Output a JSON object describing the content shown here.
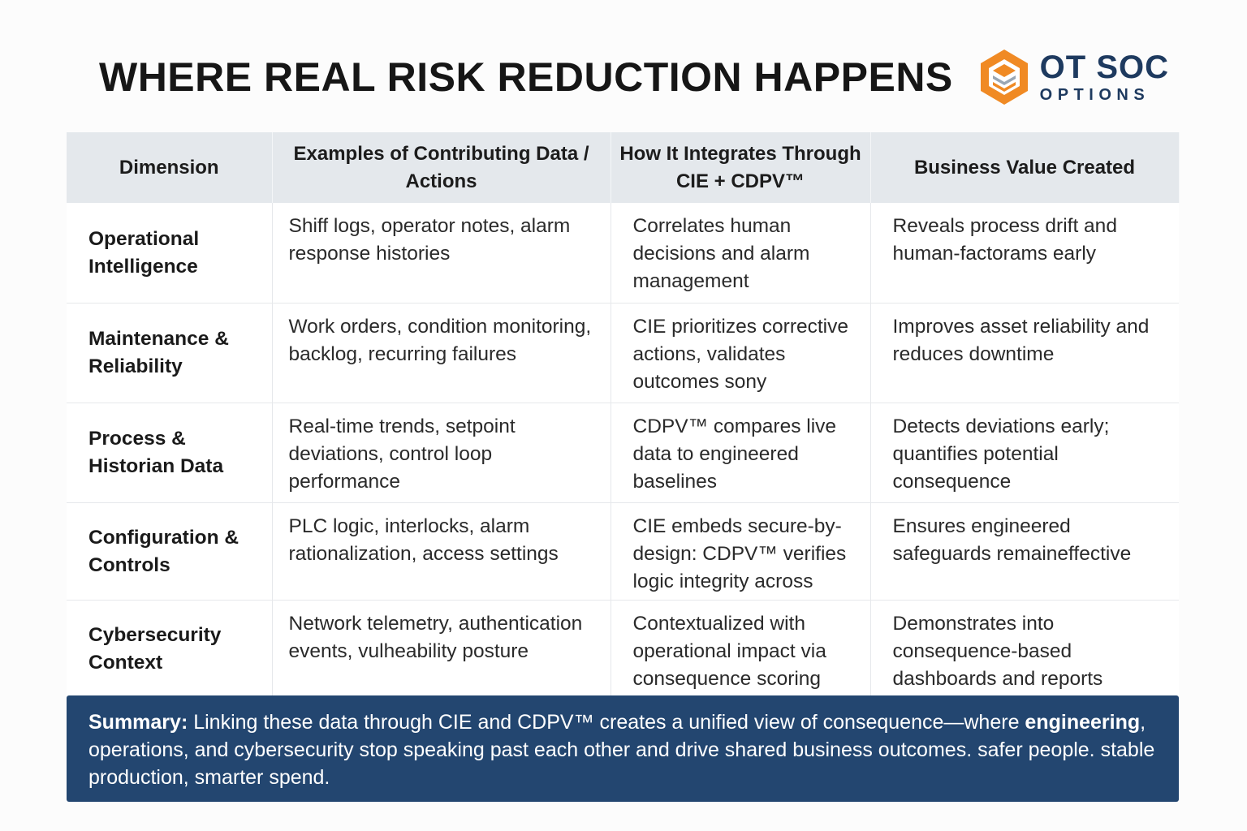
{
  "title": "WHERE REAL RISK REDUCTION HAPPENS",
  "logo": {
    "top": "OT SOC",
    "bottom": "OPTIONS",
    "colors": {
      "orange": "#f08a24",
      "navy": "#1e3a5f"
    }
  },
  "table": {
    "headers": [
      "Dimension",
      "Examples of Contributing Data / Actions",
      "How It Integrates Through CIE + CDPV™",
      "Business Value Created"
    ],
    "rows": [
      {
        "dimension": "Operational Intelligence",
        "examples": "Shiff logs, operator notes, alarm response histories",
        "integration": "Correlates human decisions and alarm management",
        "value": "Reveals process drift and human-factorams early"
      },
      {
        "dimension": "Maintenance & Reliability",
        "examples": "Work orders, condition monitoring, backlog, recurring failures",
        "integration": "CIE prioritizes corrective actions, validates outcomes sony",
        "value": "Improves asset reliability and reduces downtime"
      },
      {
        "dimension": "Process & Historian Data",
        "examples": "Real-time trends, setpoint deviations, control loop performance",
        "integration": "CDPV™ compares live data to engineered baselines",
        "value": "Detects deviations early; quantifies potential consequence"
      },
      {
        "dimension": "Configuration & Controls",
        "examples": "PLC logic, interlocks, alarm rationalization, access settings",
        "integration": "CIE embeds secure-by-design: CDPV™ verifies logic integrity across",
        "value": "Ensures engineered safeguards remaineffective"
      },
      {
        "dimension": "Cybersecurity Context",
        "examples": "Network telemetry, authentication events, vulheability posture",
        "integration": "Contextualized with operational impact via consequence scoring",
        "value": "Demonstrates into consequence-based dashboards and reports"
      }
    ]
  },
  "summary": {
    "label": "Summary:",
    "text_a": " Linking these data through CIE and CDPV™ creates a unified view of consequence—where ",
    "bold_word": "engineering",
    "text_b": ", operations, and cybersecurity stop speaking past each other and drive shared business outcomes. safer people. stable production, smarter spend.",
    "background": "#234670"
  }
}
